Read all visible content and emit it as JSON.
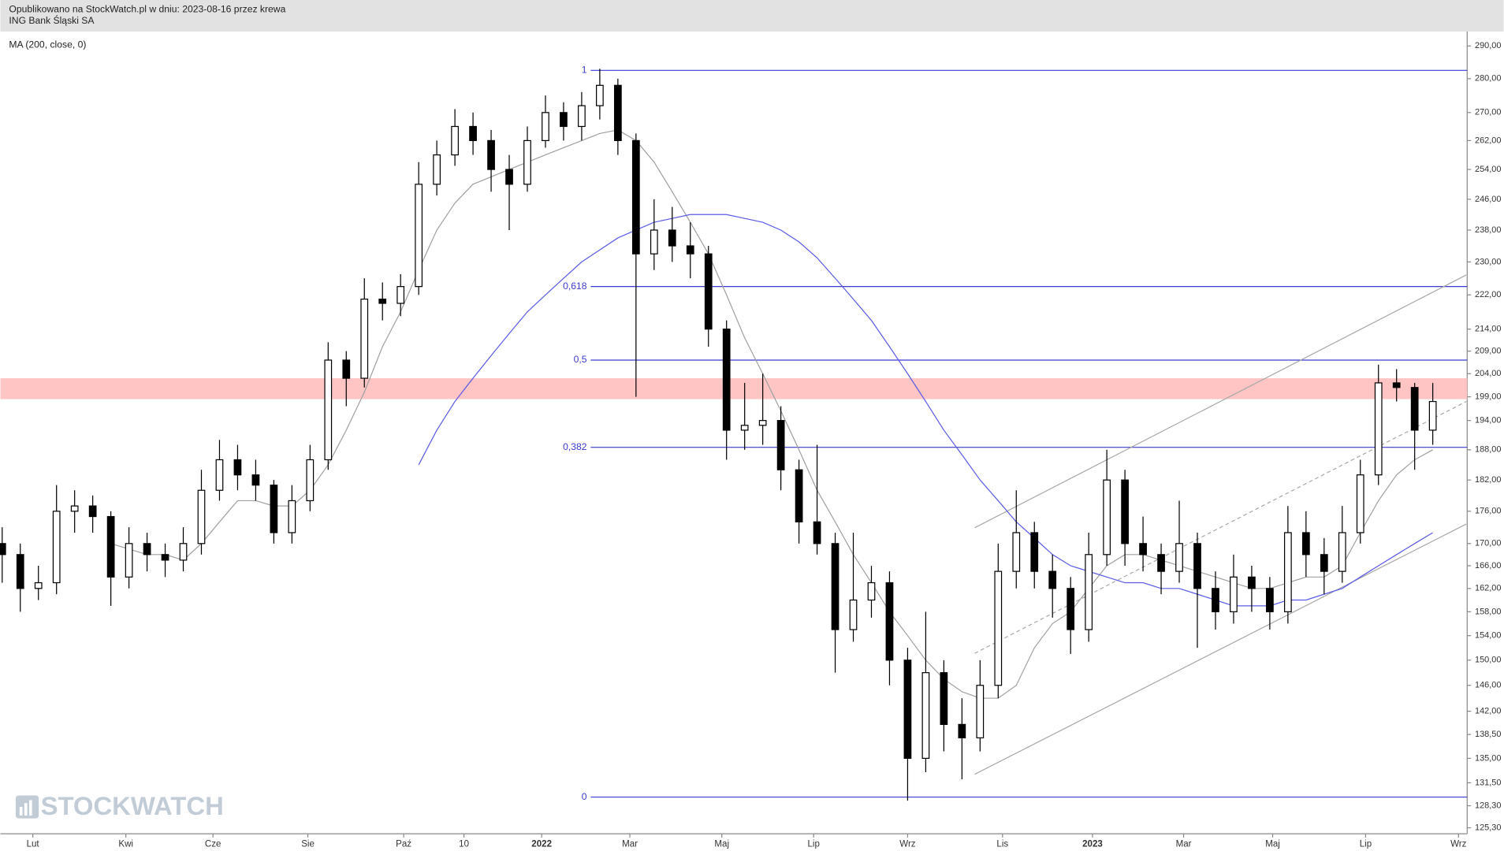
{
  "chart_data": {
    "type": "candlestick",
    "subtitle": "Opublikowano na StockWatch.pl w dniu: 2023-08-16 przez krewa",
    "title": "ING Bank Śląski SA",
    "indicator_label": "MA (200, close, 0)",
    "watermark": "STOCKWATCH",
    "up_color": "#ffffff",
    "down_color": "#000000",
    "open": [
      170,
      168,
      162,
      163,
      176,
      177,
      175,
      164,
      170,
      168,
      167,
      170,
      180,
      186,
      183,
      181,
      172,
      178,
      186,
      207,
      203,
      221,
      220,
      224,
      250,
      258,
      266,
      262,
      254,
      250,
      262,
      270,
      266,
      272,
      278,
      262,
      232,
      238,
      234,
      232,
      214,
      192,
      193,
      194,
      184,
      174,
      170,
      155,
      160,
      163,
      150,
      135,
      148,
      140,
      138,
      146,
      165,
      172,
      165,
      162,
      155,
      168,
      182,
      170,
      168,
      165,
      170,
      162,
      158,
      164,
      162,
      158,
      172,
      168,
      165,
      172,
      183,
      202,
      201,
      192
    ],
    "high": [
      173,
      170,
      166,
      181,
      180,
      179,
      176,
      173,
      172,
      170,
      173,
      184,
      190,
      189,
      186,
      182,
      181,
      189,
      211,
      209,
      226,
      225,
      227,
      256,
      262,
      271,
      270,
      265,
      258,
      266,
      275,
      273,
      276,
      283,
      280,
      264,
      246,
      244,
      240,
      234,
      216,
      202,
      204,
      197,
      186,
      189,
      172,
      172,
      166,
      165,
      152,
      158,
      150,
      144,
      150,
      170,
      180,
      174,
      168,
      164,
      172,
      188,
      184,
      175,
      170,
      178,
      172,
      165,
      168,
      166,
      164,
      177,
      176,
      171,
      177,
      186,
      206,
      205,
      202,
      202
    ],
    "low": [
      163,
      158,
      160,
      161,
      172,
      172,
      159,
      162,
      165,
      164,
      165,
      168,
      178,
      180,
      178,
      170,
      170,
      176,
      184,
      197,
      201,
      216,
      217,
      222,
      247,
      255,
      258,
      248,
      238,
      248,
      260,
      262,
      262,
      268,
      258,
      199,
      228,
      230,
      226,
      210,
      186,
      188,
      189,
      180,
      170,
      168,
      148,
      153,
      157,
      146,
      129,
      133,
      136,
      132,
      136,
      144,
      162,
      162,
      157,
      151,
      153,
      166,
      166,
      165,
      161,
      163,
      152,
      155,
      156,
      158,
      155,
      156,
      164,
      161,
      163,
      170,
      181,
      198,
      184,
      189
    ],
    "close": [
      168,
      162,
      163,
      176,
      177,
      175,
      164,
      170,
      168,
      167,
      170,
      180,
      186,
      183,
      181,
      172,
      178,
      186,
      207,
      203,
      221,
      220,
      224,
      250,
      258,
      266,
      262,
      254,
      250,
      262,
      270,
      266,
      272,
      278,
      262,
      232,
      238,
      234,
      232,
      214,
      192,
      193,
      194,
      184,
      174,
      170,
      155,
      160,
      163,
      150,
      135,
      148,
      140,
      138,
      146,
      165,
      172,
      165,
      162,
      155,
      168,
      182,
      170,
      168,
      165,
      170,
      162,
      158,
      164,
      162,
      158,
      172,
      168,
      165,
      172,
      183,
      202,
      201,
      192,
      198
    ],
    "overlays": [
      {
        "color": "#a0a0a0",
        "values": [
          null,
          null,
          null,
          null,
          null,
          null,
          170,
          169,
          168,
          168,
          167,
          170,
          174,
          178,
          178,
          177,
          177,
          180,
          185,
          192,
          200,
          210,
          218,
          228,
          238,
          245,
          250,
          252,
          254,
          256,
          258,
          260,
          262,
          264,
          265,
          262,
          256,
          248,
          240,
          232,
          222,
          212,
          204,
          196,
          188,
          180,
          174,
          168,
          163,
          158,
          154,
          150,
          147,
          145,
          144,
          144,
          146,
          152,
          156,
          158,
          162,
          166,
          168,
          168,
          167,
          166,
          165,
          164,
          163,
          162,
          162,
          163,
          164,
          164,
          166,
          172,
          178,
          183,
          186,
          188
        ]
      },
      {
        "color": "#5a5ae6",
        "values": [
          null,
          null,
          null,
          null,
          null,
          null,
          null,
          null,
          null,
          null,
          null,
          null,
          null,
          null,
          null,
          null,
          null,
          null,
          null,
          null,
          null,
          null,
          null,
          185,
          192,
          198,
          203,
          208,
          213,
          218,
          222,
          226,
          230,
          233,
          236,
          238,
          240,
          241,
          242,
          242,
          242,
          241,
          240,
          238,
          235,
          231,
          226,
          221,
          216,
          210,
          204,
          198,
          192,
          187,
          182,
          178,
          174,
          171,
          168,
          166,
          165,
          164,
          163,
          163,
          162,
          162,
          161,
          160,
          159,
          159,
          159,
          160,
          160,
          161,
          162,
          164,
          166,
          168,
          170,
          172
        ]
      }
    ],
    "fib_color": "#3a3ad0",
    "fib_start": 32.5,
    "fib_levels": [
      {
        "label": "1",
        "value": 282.5
      },
      {
        "label": "0,618",
        "value": 224
      },
      {
        "label": "0,5",
        "value": 207
      },
      {
        "label": "0,382",
        "value": 188.5
      },
      {
        "label": "0",
        "value": 129.5
      }
    ],
    "zone": {
      "range": [
        198.5,
        203
      ],
      "color": "#ffc4c4"
    },
    "trendlines": [
      {
        "x": [
          53.7,
          80.85
        ],
        "y": [
          172.9,
          226.8
        ],
        "color": "#a8a8a8",
        "dashed": false
      },
      {
        "x": [
          53.7,
          80.85
        ],
        "y": [
          151.1,
          198
        ],
        "color": "#a8a8a8",
        "dashed": true
      },
      {
        "x": [
          53.7,
          80.85
        ],
        "y": [
          132.7,
          173.6
        ],
        "color": "#a8a8a8",
        "dashed": false
      }
    ],
    "log_scale": true,
    "xlim": [
      -0.1,
      80.9
    ],
    "ylim": [
      124.5,
      294.5
    ],
    "xticks": [
      {
        "value": 1.69,
        "label": "Lut"
      },
      {
        "value": 6.83,
        "label": "Kwi"
      },
      {
        "value": 11.64,
        "label": "Cze"
      },
      {
        "value": 16.88,
        "label": "Sie"
      },
      {
        "value": 22.17,
        "label": "Paź"
      },
      {
        "value": 25.5,
        "label": "10"
      },
      {
        "value": 29.79,
        "label": "2022"
      },
      {
        "value": 34.66,
        "label": "Mar"
      },
      {
        "value": 39.74,
        "label": "Maj"
      },
      {
        "value": 44.81,
        "label": "Lip"
      },
      {
        "value": 50.0,
        "label": "Wrz"
      },
      {
        "value": 55.24,
        "label": "Lis"
      },
      {
        "value": 60.21,
        "label": "2023"
      },
      {
        "value": 65.24,
        "label": "Mar"
      },
      {
        "value": 70.16,
        "label": "Maj"
      },
      {
        "value": 75.29,
        "label": "Lip"
      },
      {
        "value": 80.42,
        "label": "Wrz"
      }
    ],
    "yticks": [
      {
        "value": 290,
        "label": "290,00"
      },
      {
        "value": 280,
        "label": "280,00"
      },
      {
        "value": 270,
        "label": "270,00"
      },
      {
        "value": 262,
        "label": "262,00"
      },
      {
        "value": 254,
        "label": "254,00"
      },
      {
        "value": 246,
        "label": "246,00"
      },
      {
        "value": 238,
        "label": "238,00"
      },
      {
        "value": 230,
        "label": "230,00"
      },
      {
        "value": 222,
        "label": "222,00"
      },
      {
        "value": 214,
        "label": "214,00"
      },
      {
        "value": 209,
        "label": "209,00"
      },
      {
        "value": 204,
        "label": "204,00"
      },
      {
        "value": 199,
        "label": "199,00"
      },
      {
        "value": 194,
        "label": "194,00"
      },
      {
        "value": 188,
        "label": "188,00"
      },
      {
        "value": 182,
        "label": "182,00"
      },
      {
        "value": 176,
        "label": "176,00"
      },
      {
        "value": 170,
        "label": "170,00"
      },
      {
        "value": 166,
        "label": "166,00"
      },
      {
        "value": 162,
        "label": "162,00"
      },
      {
        "value": 158,
        "label": "158,00"
      },
      {
        "value": 154,
        "label": "154,00"
      },
      {
        "value": 150,
        "label": "150,00"
      },
      {
        "value": 146,
        "label": "146,00"
      },
      {
        "value": 142,
        "label": "142,00"
      },
      {
        "value": 138.5,
        "label": "138,50"
      },
      {
        "value": 135,
        "label": "135,00"
      },
      {
        "value": 131.5,
        "label": "131,50"
      },
      {
        "value": 128.3,
        "label": "128,30"
      },
      {
        "value": 125.3,
        "label": "125,30"
      }
    ]
  }
}
